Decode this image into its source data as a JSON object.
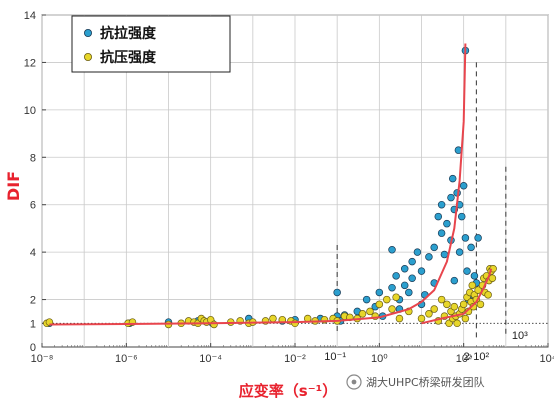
{
  "chart_data": {
    "type": "scatter",
    "xscale": "log",
    "xlim": [
      1e-08,
      10000.0
    ],
    "ylim": [
      0,
      14
    ],
    "xlabel": "应变率（s⁻¹）",
    "ylabel": "DIF",
    "grid": true,
    "legend_position": "top-left",
    "xticks": [
      {
        "value": 1e-08,
        "label": "10⁻⁸"
      },
      {
        "value": 1e-06,
        "label": "10⁻⁶"
      },
      {
        "value": 0.0001,
        "label": "10⁻⁴"
      },
      {
        "value": 0.01,
        "label": "10⁻²"
      },
      {
        "value": 1,
        "label": "10⁰"
      },
      {
        "value": 100,
        "label": "10²"
      },
      {
        "value": 10000,
        "label": "10⁴"
      }
    ],
    "yticks": [
      0,
      1,
      2,
      4,
      6,
      8,
      10,
      12,
      14
    ],
    "reference_line": {
      "y": 1,
      "style": "dotted"
    },
    "annotations": [
      {
        "x": 0.1,
        "label": "10⁻¹"
      },
      {
        "x": 200,
        "label": "2·10²"
      },
      {
        "x": 1000,
        "label": "10³"
      }
    ],
    "series": [
      {
        "name": "抗拉强度",
        "color": "#2b9fce",
        "points": [
          [
            1.5e-08,
            1.0
          ],
          [
            1.2e-06,
            1.0
          ],
          [
            1e-05,
            1.05
          ],
          [
            5e-05,
            1.1
          ],
          [
            0.00011,
            1.0
          ],
          [
            0.0008,
            1.2
          ],
          [
            0.005,
            1.1
          ],
          [
            0.01,
            1.15
          ],
          [
            0.04,
            1.2
          ],
          [
            0.1,
            1.3
          ],
          [
            0.1,
            2.3
          ],
          [
            0.12,
            1.1
          ],
          [
            0.15,
            1.35
          ],
          [
            0.3,
            1.5
          ],
          [
            0.5,
            2.0
          ],
          [
            0.8,
            1.7
          ],
          [
            1.0,
            2.3
          ],
          [
            1.2,
            1.3
          ],
          [
            2,
            2.5
          ],
          [
            2,
            4.1
          ],
          [
            2.5,
            3.0
          ],
          [
            3,
            1.6
          ],
          [
            3,
            2.0
          ],
          [
            4,
            2.6
          ],
          [
            4,
            3.3
          ],
          [
            5,
            2.3
          ],
          [
            6,
            2.9
          ],
          [
            6,
            3.6
          ],
          [
            8,
            4.0
          ],
          [
            10,
            3.2
          ],
          [
            10,
            1.8
          ],
          [
            12,
            2.2
          ],
          [
            15,
            3.8
          ],
          [
            20,
            4.2
          ],
          [
            20,
            2.7
          ],
          [
            25,
            5.5
          ],
          [
            30,
            4.8
          ],
          [
            30,
            6.0
          ],
          [
            35,
            3.9
          ],
          [
            40,
            5.2
          ],
          [
            50,
            6.3
          ],
          [
            50,
            4.5
          ],
          [
            55,
            7.1
          ],
          [
            60,
            5.8
          ],
          [
            60,
            2.8
          ],
          [
            70,
            6.5
          ],
          [
            75,
            8.3
          ],
          [
            80,
            4.0
          ],
          [
            80,
            6.0
          ],
          [
            90,
            5.5
          ],
          [
            100,
            6.8
          ],
          [
            110,
            12.5
          ],
          [
            110,
            4.6
          ],
          [
            120,
            3.2
          ],
          [
            130,
            2.0
          ],
          [
            150,
            4.2
          ],
          [
            160,
            2.2
          ],
          [
            180,
            3.0
          ],
          [
            200,
            2.7
          ],
          [
            220,
            4.6
          ]
        ]
      },
      {
        "name": "抗压强度",
        "color": "#e7d62a",
        "points": [
          [
            1.3e-08,
            1.0
          ],
          [
            1.5e-08,
            1.05
          ],
          [
            1.1e-06,
            1.0
          ],
          [
            1.4e-06,
            1.05
          ],
          [
            1e-05,
            0.95
          ],
          [
            2e-05,
            1.0
          ],
          [
            3e-05,
            1.1
          ],
          [
            4e-05,
            1.05
          ],
          [
            5e-05,
            1.0
          ],
          [
            6e-05,
            1.2
          ],
          [
            7e-05,
            1.1
          ],
          [
            8e-05,
            1.05
          ],
          [
            0.0001,
            1.15
          ],
          [
            0.00012,
            0.95
          ],
          [
            0.0003,
            1.05
          ],
          [
            0.0005,
            1.1
          ],
          [
            0.0008,
            1.0
          ],
          [
            0.001,
            1.05
          ],
          [
            0.002,
            1.1
          ],
          [
            0.003,
            1.2
          ],
          [
            0.005,
            1.15
          ],
          [
            0.008,
            1.1
          ],
          [
            0.01,
            1.0
          ],
          [
            0.02,
            1.2
          ],
          [
            0.03,
            1.1
          ],
          [
            0.05,
            1.15
          ],
          [
            0.08,
            1.2
          ],
          [
            0.1,
            1.1
          ],
          [
            0.15,
            1.3
          ],
          [
            0.2,
            1.25
          ],
          [
            0.3,
            1.2
          ],
          [
            0.4,
            1.4
          ],
          [
            0.6,
            1.5
          ],
          [
            0.8,
            1.3
          ],
          [
            1.0,
            1.8
          ],
          [
            1.5,
            2.0
          ],
          [
            2,
            1.6
          ],
          [
            2.5,
            2.1
          ],
          [
            3,
            1.2
          ],
          [
            5,
            1.5
          ],
          [
            10,
            1.2
          ],
          [
            15,
            1.4
          ],
          [
            20,
            1.6
          ],
          [
            25,
            1.1
          ],
          [
            30,
            2.0
          ],
          [
            35,
            1.3
          ],
          [
            40,
            1.8
          ],
          [
            45,
            1.0
          ],
          [
            50,
            1.5
          ],
          [
            55,
            1.2
          ],
          [
            60,
            1.7
          ],
          [
            65,
            1.3
          ],
          [
            70,
            1.0
          ],
          [
            80,
            1.4
          ],
          [
            90,
            1.6
          ],
          [
            100,
            1.8
          ],
          [
            110,
            1.2
          ],
          [
            120,
            2.1
          ],
          [
            130,
            1.5
          ],
          [
            140,
            2.3
          ],
          [
            150,
            1.9
          ],
          [
            160,
            2.6
          ],
          [
            170,
            1.7
          ],
          [
            180,
            2.2
          ],
          [
            200,
            2.0
          ],
          [
            220,
            2.4
          ],
          [
            250,
            1.8
          ],
          [
            280,
            2.6
          ],
          [
            300,
            2.9
          ],
          [
            320,
            2.3
          ],
          [
            350,
            3.0
          ],
          [
            380,
            2.2
          ],
          [
            400,
            2.8
          ],
          [
            420,
            3.3
          ],
          [
            450,
            3.2
          ],
          [
            480,
            2.9
          ],
          [
            500,
            3.3
          ]
        ]
      }
    ],
    "fit_curves": [
      {
        "color": "#e8454d",
        "points": [
          [
            1.5e-08,
            0.95
          ],
          [
            1e-06,
            0.97
          ],
          [
            0.0001,
            1.0
          ],
          [
            0.01,
            1.05
          ],
          [
            0.1,
            1.1
          ],
          [
            1,
            1.25
          ],
          [
            5,
            1.6
          ],
          [
            10,
            1.9
          ],
          [
            20,
            2.4
          ],
          [
            40,
            3.6
          ],
          [
            60,
            5.0
          ],
          [
            80,
            7.0
          ],
          [
            100,
            9.5
          ],
          [
            110,
            12.8
          ]
        ]
      },
      {
        "color": "#e8454d",
        "points": [
          [
            10,
            1.0
          ],
          [
            30,
            1.2
          ],
          [
            100,
            1.4
          ],
          [
            200,
            1.9
          ],
          [
            300,
            2.5
          ],
          [
            400,
            3.0
          ],
          [
            450,
            3.3
          ]
        ]
      }
    ]
  },
  "legend": {
    "items": [
      {
        "label": "抗拉强度",
        "color": "#2b9fce"
      },
      {
        "label": "抗压强度",
        "color": "#e7d62a"
      }
    ]
  },
  "watermark": "湖大UHPC桥梁研发团队"
}
